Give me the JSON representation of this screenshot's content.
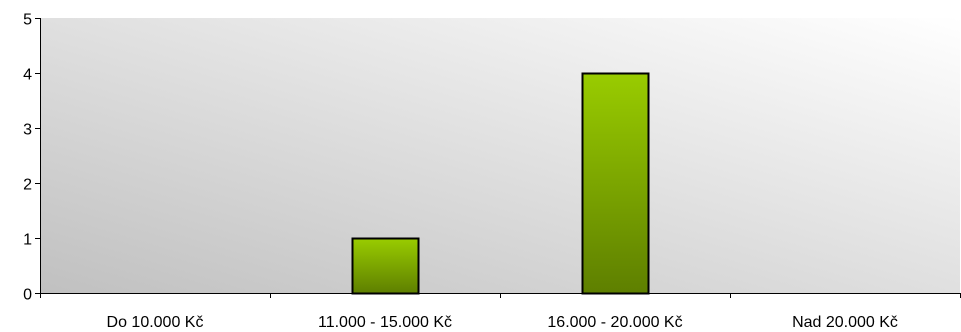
{
  "chart_data": {
    "type": "bar",
    "categories": [
      "Do 10.000 Kč",
      "11.000 - 15.000 Kč",
      "16.000 - 20.000 Kč",
      "Nad 20.000 Kč"
    ],
    "values": [
      0,
      1,
      4,
      0
    ],
    "ylim": [
      0,
      5
    ],
    "yticks": [
      "0",
      "1",
      "2",
      "3",
      "4",
      "5"
    ],
    "title": "",
    "xlabel": "",
    "ylabel": "",
    "grid": false,
    "legend": "none",
    "colors": {
      "bar_top": "#99cc00",
      "bar_bottom": "#5e7f00",
      "bar_outline": "#000000",
      "plot_bg_light": "#ffffff",
      "plot_bg_dark": "#c0c0c0"
    }
  }
}
